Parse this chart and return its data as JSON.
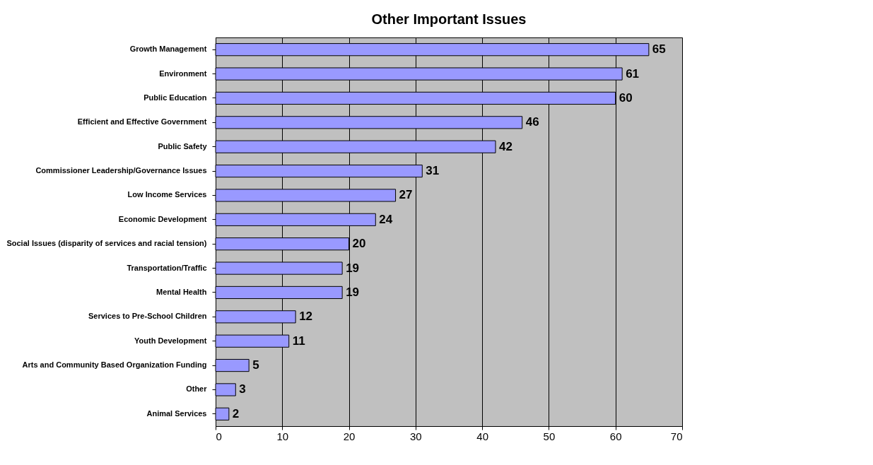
{
  "chart_data": {
    "type": "bar",
    "title": "Other Important Issues",
    "orientation": "horizontal",
    "categories": [
      "Growth Management",
      "Environment",
      "Public Education",
      "Efficient and Effective Government",
      "Public Safety",
      "Commissioner Leadership/Governance Issues",
      "Low Income Services",
      "Economic Development",
      "Social Issues (disparity of services and racial tension)",
      "Transportation/Traffic",
      "Mental Health",
      "Services to Pre-School Children",
      "Youth Development",
      "Arts and Community Based Organization Funding",
      "Other",
      "Animal Services"
    ],
    "values": [
      65,
      61,
      60,
      46,
      42,
      31,
      27,
      24,
      20,
      19,
      19,
      12,
      11,
      5,
      3,
      2
    ],
    "color": "#9999ff",
    "xlim": [
      0,
      70
    ],
    "xticks": [
      0,
      10,
      20,
      30,
      40,
      50,
      60,
      70
    ],
    "grid": "x",
    "data_labels": true
  }
}
